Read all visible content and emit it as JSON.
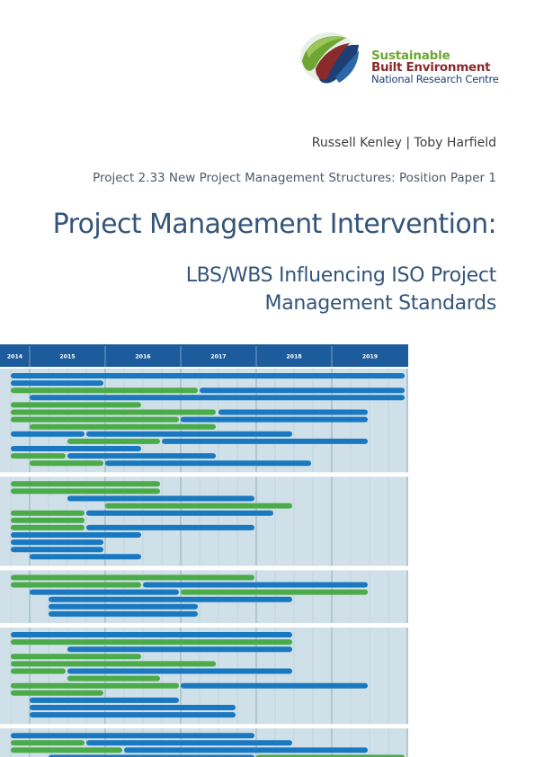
{
  "logo": {
    "line1": "Sustainable",
    "line2": "Built Environment",
    "line3": "National Research Centre",
    "colors": {
      "green": "#6ea633",
      "red": "#8a2a2a",
      "navy": "#1d3f73"
    }
  },
  "authors": "Russell Kenley  |  Toby Harfield",
  "project": "Project 2.33 New Project Management Structures: Position Paper 1",
  "title": "Project Management Intervention:",
  "subtitle": {
    "line1": "LBS/WBS Influencing ISO Project",
    "line2": "Management Standards"
  },
  "gantt": {
    "years": [
      "2014",
      "2015",
      "2016",
      "2017",
      "2018",
      "2019"
    ],
    "colors": {
      "header": "#1d5c9c",
      "background": "#cfe0e8",
      "blue": "#1978c0",
      "green": "#4aab48",
      "light": "#28b4e4"
    },
    "groups": [
      {
        "bars": [
          [
            [
              "b",
              12,
              450
            ]
          ],
          [
            [
              "b",
              12,
              115
            ]
          ],
          [
            [
              "g",
              12,
              220
            ],
            [
              "b",
              222,
              450
            ]
          ],
          [
            [
              "b",
              33,
              450
            ]
          ],
          [
            [
              "g",
              12,
              157
            ]
          ],
          [
            [
              "g",
              12,
              240
            ],
            [
              "b",
              243,
              409
            ]
          ],
          [
            [
              "g",
              12,
              199
            ],
            [
              "b",
              201,
              409
            ]
          ],
          [
            [
              "g",
              33,
              240
            ]
          ],
          [
            [
              "b",
              12,
              94
            ],
            [
              "b",
              96,
              325
            ]
          ],
          [
            [
              "g",
              75,
              178
            ],
            [
              "b",
              180,
              409
            ]
          ],
          [
            [
              "b",
              12,
              157
            ]
          ],
          [
            [
              "g",
              12,
              73
            ],
            [
              "b",
              75,
              240
            ]
          ],
          [
            [
              "g",
              33,
              115
            ],
            [
              "b",
              117,
              346
            ]
          ]
        ]
      },
      {
        "bars": [
          [
            [
              "g",
              12,
              178
            ]
          ],
          [
            [
              "g",
              12,
              178
            ]
          ],
          [
            [
              "b",
              75,
              283
            ]
          ],
          [
            [
              "g",
              117,
              325
            ]
          ],
          [
            [
              "g",
              12,
              94
            ],
            [
              "b",
              96,
              304
            ]
          ],
          [
            [
              "g",
              12,
              94
            ]
          ],
          [
            [
              "g",
              12,
              94
            ],
            [
              "b",
              96,
              283
            ]
          ],
          [
            [
              "b",
              12,
              157
            ]
          ],
          [
            [
              "b",
              12,
              115
            ]
          ],
          [
            [
              "b",
              12,
              115
            ]
          ],
          [
            [
              "b",
              33,
              157
            ]
          ]
        ]
      },
      {
        "bars": [
          [
            [
              "g",
              12,
              283
            ]
          ],
          [
            [
              "g",
              12,
              157
            ],
            [
              "b",
              159,
              409
            ]
          ],
          [
            [
              "b",
              33,
              199
            ],
            [
              "g",
              201,
              409
            ]
          ],
          [
            [
              "b",
              54,
              325
            ]
          ],
          [
            [
              "b",
              54,
              220
            ]
          ],
          [
            [
              "b",
              54,
              220
            ]
          ]
        ]
      },
      {
        "bars": [
          [
            [
              "b",
              12,
              325
            ]
          ],
          [
            [
              "g",
              12,
              325
            ]
          ],
          [
            [
              "b",
              75,
              325
            ]
          ],
          [
            [
              "g",
              12,
              157
            ]
          ],
          [
            [
              "g",
              12,
              240
            ]
          ],
          [
            [
              "g",
              12,
              73
            ],
            [
              "b",
              75,
              325
            ]
          ],
          [
            [
              "g",
              75,
              178
            ]
          ],
          [
            [
              "g",
              12,
              199
            ],
            [
              "b",
              201,
              409
            ]
          ],
          [
            [
              "g",
              12,
              115
            ]
          ],
          [
            [
              "b",
              33,
              199
            ]
          ],
          [
            [
              "b",
              33,
              262
            ]
          ],
          [
            [
              "b",
              33,
              262
            ]
          ]
        ]
      },
      {
        "bars": [
          [
            [
              "b",
              12,
              283
            ]
          ],
          [
            [
              "g",
              12,
              94
            ],
            [
              "b",
              96,
              325
            ]
          ],
          [
            [
              "g",
              12,
              136
            ],
            [
              "b",
              138,
              409
            ]
          ],
          [
            [
              "b",
              54,
              283
            ],
            [
              "g",
              285,
              450
            ]
          ],
          [
            [
              "l",
              54,
              115
            ],
            [
              "g",
              117,
              450
            ]
          ],
          [
            [
              "l",
              54,
              115
            ],
            [
              "g",
              117,
              346
            ],
            [
              "b",
              348,
              450
            ]
          ],
          [
            [
              "b",
              54,
              304
            ]
          ]
        ]
      }
    ]
  }
}
